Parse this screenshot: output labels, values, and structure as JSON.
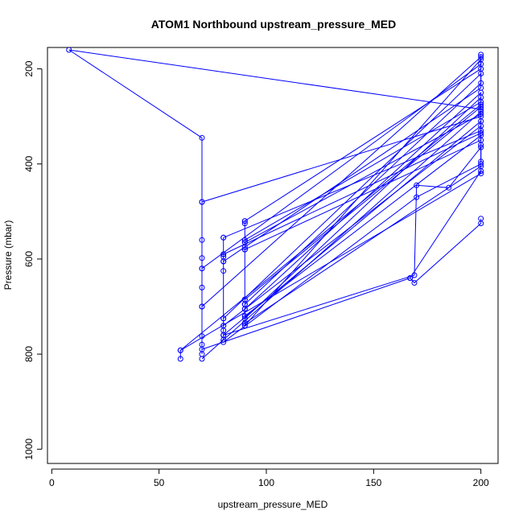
{
  "chart_data": {
    "type": "line",
    "title": "ATOM1 Northbound upstream_pressure_MED",
    "xlabel": "upstream_pressure_MED",
    "ylabel": "Pressure (mbar)",
    "xlim": [
      -2,
      208
    ],
    "ylim": [
      1030,
      155
    ],
    "y_reversed": true,
    "x_ticks": [
      0,
      50,
      100,
      150,
      200
    ],
    "y_ticks": [
      200,
      400,
      600,
      800,
      1000
    ],
    "series_color": "#0000ff",
    "point_marker": "open-circle",
    "grid": false,
    "series": [
      {
        "x": [
          60,
          60,
          200,
          200,
          8,
          70,
          70,
          70,
          70,
          70,
          70,
          70,
          70,
          70,
          70
        ],
        "y": [
          810,
          792,
          275,
          285,
          160,
          345,
          480,
          560,
          598,
          620,
          660,
          700,
          762,
          780,
          800
        ]
      },
      {
        "x": [
          70,
          200,
          200,
          70
        ],
        "y": [
          810,
          290,
          300,
          480
        ]
      },
      {
        "x": [
          80,
          80,
          80,
          80,
          80,
          80,
          80,
          80,
          80,
          80
        ],
        "y": [
          555,
          590,
          595,
          605,
          625,
          725,
          740,
          750,
          760,
          770
        ]
      },
      {
        "x": [
          80,
          200,
          200,
          80
        ],
        "y": [
          760,
          310,
          330,
          555
        ]
      },
      {
        "x": [
          80,
          170,
          200
        ],
        "y": [
          775,
          470,
          400
        ]
      },
      {
        "x": [
          90,
          90,
          90,
          90,
          90,
          90,
          90,
          90,
          90,
          90,
          90,
          90
        ],
        "y": [
          520,
          525,
          560,
          565,
          575,
          580,
          685,
          695,
          705,
          720,
          735,
          740
        ]
      },
      {
        "x": [
          90,
          200,
          200,
          90
        ],
        "y": [
          740,
          180,
          200,
          520
        ]
      },
      {
        "x": [
          90,
          200,
          200,
          90
        ],
        "y": [
          705,
          250,
          270,
          560
        ]
      },
      {
        "x": [
          90,
          200
        ],
        "y": [
          735,
          405
        ]
      },
      {
        "x": [
          90,
          200,
          200,
          90
        ],
        "y": [
          720,
          340,
          350,
          580
        ]
      },
      {
        "x": [
          90,
          200,
          200
        ],
        "y": [
          695,
          230,
          170
        ]
      },
      {
        "x": [
          167,
          169,
          200,
          200
        ],
        "y": [
          640,
          650,
          525,
          515
        ]
      },
      {
        "x": [
          70,
          167,
          200
        ],
        "y": [
          790,
          640,
          415
        ]
      },
      {
        "x": [
          80,
          169,
          170,
          185,
          200
        ],
        "y": [
          760,
          634,
          445,
          450,
          365
        ]
      },
      {
        "x": [
          60,
          200,
          200
        ],
        "y": [
          792,
          420,
          360
        ]
      },
      {
        "x": [
          90,
          200,
          200,
          90
        ],
        "y": [
          685,
          280,
          295,
          565
        ]
      },
      {
        "x": [
          80,
          200,
          200,
          80
        ],
        "y": [
          740,
          320,
          335,
          590
        ]
      },
      {
        "x": [
          70,
          200,
          200,
          70
        ],
        "y": [
          700,
          175,
          190,
          620
        ]
      },
      {
        "x": [
          90,
          200,
          200
        ],
        "y": [
          725,
          260,
          395
        ]
      },
      {
        "x": [
          80,
          200,
          200,
          80
        ],
        "y": [
          725,
          210,
          240,
          605
        ]
      }
    ]
  }
}
